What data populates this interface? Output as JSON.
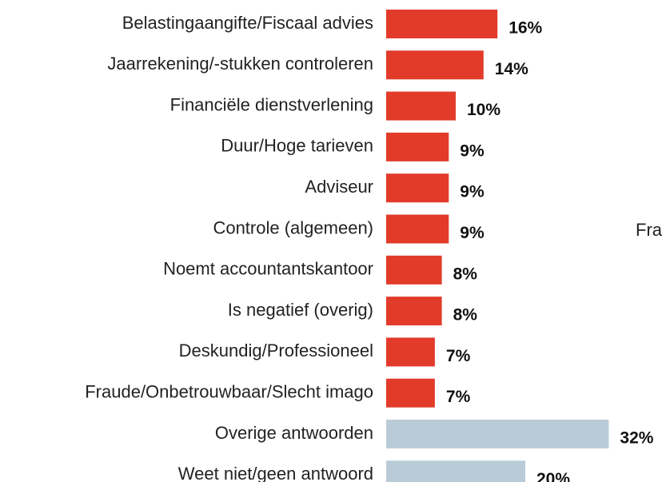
{
  "chart_data": {
    "type": "bar",
    "orientation": "horizontal",
    "categories": [
      "Belastingaangifte/Fiscaal advies",
      "Jaarrekening/-stukken controleren",
      "Financiële dienstverlening",
      "Duur/Hoge tarieven",
      "Adviseur",
      "Controle (algemeen)",
      "Noemt accountantskantoor",
      "Is negatief (overig)",
      "Deskundig/Professioneel",
      "Fraude/Onbetrouwbaar/Slecht imago",
      "Overige antwoorden",
      "Weet niet/geen antwoord"
    ],
    "values": [
      16,
      14,
      10,
      9,
      9,
      9,
      8,
      8,
      7,
      7,
      32,
      20
    ],
    "value_labels": [
      "16%",
      "14%",
      "10%",
      "9%",
      "9%",
      "9%",
      "8%",
      "8%",
      "7%",
      "7%",
      "32%",
      "20%"
    ],
    "colors": [
      "#e23b2a",
      "#e23b2a",
      "#e23b2a",
      "#e23b2a",
      "#e23b2a",
      "#e23b2a",
      "#e23b2a",
      "#e23b2a",
      "#e23b2a",
      "#e23b2a",
      "#b9cbd7",
      "#b9cbd7"
    ],
    "annotation": "Fra"
  }
}
